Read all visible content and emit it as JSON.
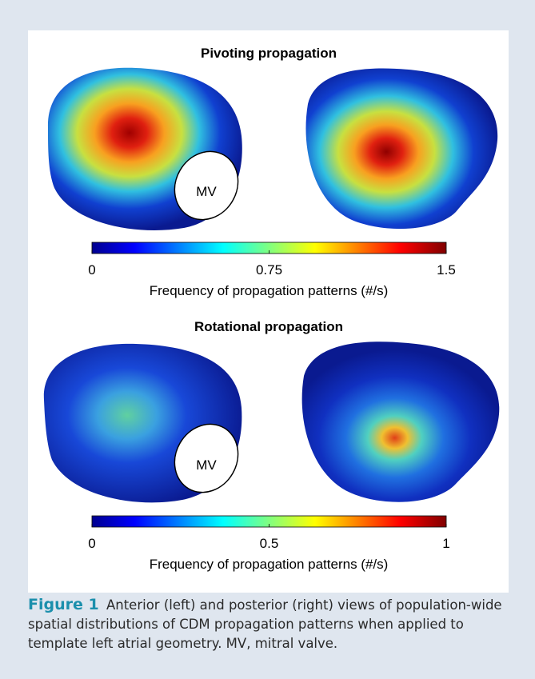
{
  "panels": [
    {
      "title": "Pivoting propagation",
      "mv_label": "MV",
      "colorbar": {
        "lim": [
          0,
          1.5
        ],
        "ticks": [
          0,
          0.75,
          1.5
        ],
        "label": "Frequency of propagation patterns (#/s)"
      }
    },
    {
      "title": "Rotational propagation",
      "mv_label": "MV",
      "colorbar": {
        "lim": [
          0,
          1
        ],
        "ticks": [
          0,
          0.5,
          1
        ],
        "label": "Frequency of propagation patterns (#/s)"
      }
    }
  ],
  "caption": {
    "label": "Figure 1",
    "text": "Anterior (left) and posterior (right) views of population-wide spatial distributions of CDM propagation patterns when applied to template left atrial geometry. MV, mitral valve."
  }
}
